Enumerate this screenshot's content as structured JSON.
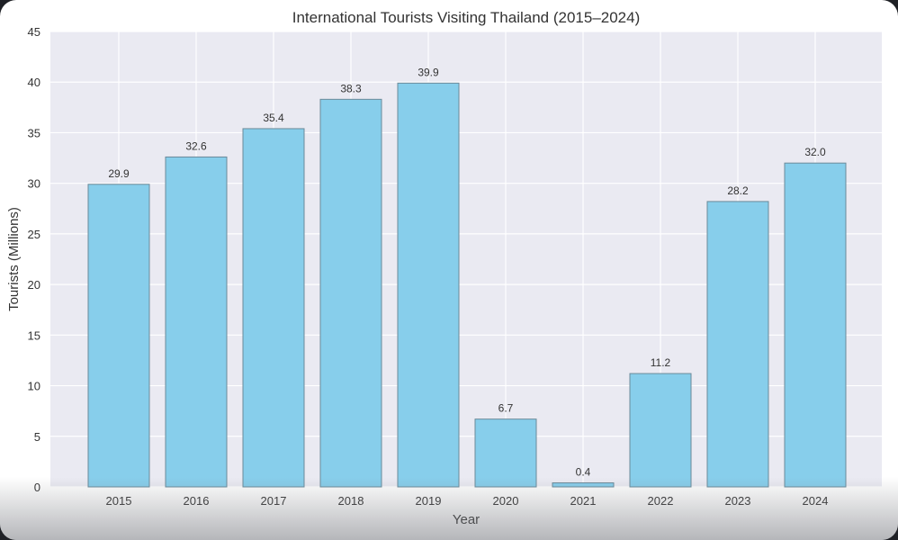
{
  "chart_data": {
    "type": "bar",
    "title": "International Tourists Visiting Thailand (2015–2024)",
    "xlabel": "Year",
    "ylabel": "Tourists (Millions)",
    "categories": [
      "2015",
      "2016",
      "2017",
      "2018",
      "2019",
      "2020",
      "2021",
      "2022",
      "2023",
      "2024"
    ],
    "values": [
      29.9,
      32.6,
      35.4,
      38.3,
      39.9,
      6.7,
      0.4,
      11.2,
      28.2,
      32.0
    ],
    "data_labels": [
      "29.9",
      "32.6",
      "35.4",
      "38.3",
      "39.9",
      "6.7",
      "0.4",
      "11.2",
      "28.2",
      "32.0"
    ],
    "ylim": [
      0,
      45
    ],
    "yticks": [
      "0",
      "5",
      "10",
      "15",
      "20",
      "25",
      "30",
      "35",
      "40",
      "45"
    ],
    "grid": true,
    "colors": {
      "bar_fill": "#87ceeb",
      "bar_edge": "#6b8a99",
      "plot_background": "#eaeaf2",
      "grid": "#ffffff",
      "text": "#333333"
    }
  }
}
